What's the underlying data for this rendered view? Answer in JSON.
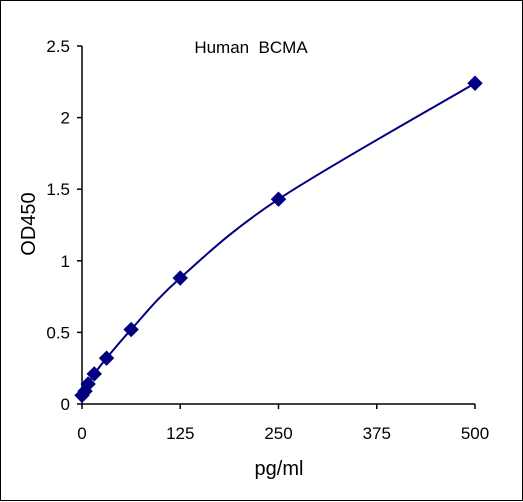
{
  "chart_data": {
    "type": "scatter",
    "title": "Human  BCMA",
    "xlabel": "pg/ml",
    "ylabel": "OD450",
    "xlim": [
      0,
      500
    ],
    "ylim": [
      0,
      2.5
    ],
    "x_ticks": [
      0,
      125,
      250,
      375,
      500
    ],
    "y_ticks": [
      0,
      0.5,
      1,
      1.5,
      2,
      2.5
    ],
    "x_tick_labels": [
      "0",
      "125",
      "250",
      "375",
      "500"
    ],
    "y_tick_labels": [
      "0",
      "0.5",
      "1",
      "1.5",
      "2",
      "2.5"
    ],
    "grid": false,
    "legend": "none",
    "trendline": true,
    "series": [
      {
        "marker": "diamond",
        "color": "#000080",
        "x": [
          0,
          3.9,
          7.8,
          15.6,
          31.25,
          62.5,
          125,
          250,
          500
        ],
        "y": [
          0.06,
          0.09,
          0.14,
          0.21,
          0.32,
          0.52,
          0.88,
          1.43,
          2.24
        ]
      }
    ]
  }
}
